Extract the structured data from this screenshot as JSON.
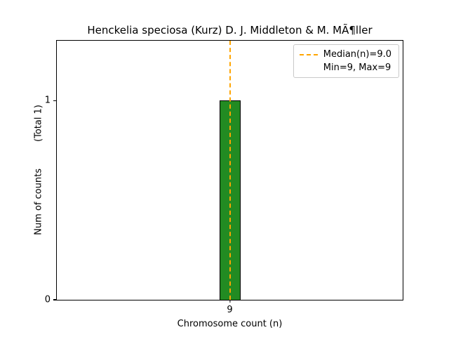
{
  "chart_data": {
    "type": "bar",
    "title": "Henckelia speciosa (Kurz) D. J. Middleton & M. MÃ¶ller",
    "xlabel": "Chromosome count (n)",
    "ylabel_main": "Num of counts",
    "ylabel_total": "(Total 1)",
    "categories": [
      "9"
    ],
    "values": [
      1
    ],
    "ylim": [
      0,
      1.3
    ],
    "yticks": [
      0,
      1
    ],
    "ytick_labels": [
      "0",
      "1"
    ],
    "xtick_label": "9",
    "bar_color": "#228B22",
    "bar_edge_color": "#000000",
    "median_line": {
      "x": 9,
      "value": 9.0,
      "color": "#FFA500",
      "style": "dashed"
    },
    "legend": {
      "position": "upper right",
      "entries": [
        {
          "label": "Median(n)=9.0",
          "handle": "dashed-orange-line"
        },
        {
          "label": "Min=9, Max=9",
          "handle": "none"
        }
      ]
    },
    "grid": false
  }
}
